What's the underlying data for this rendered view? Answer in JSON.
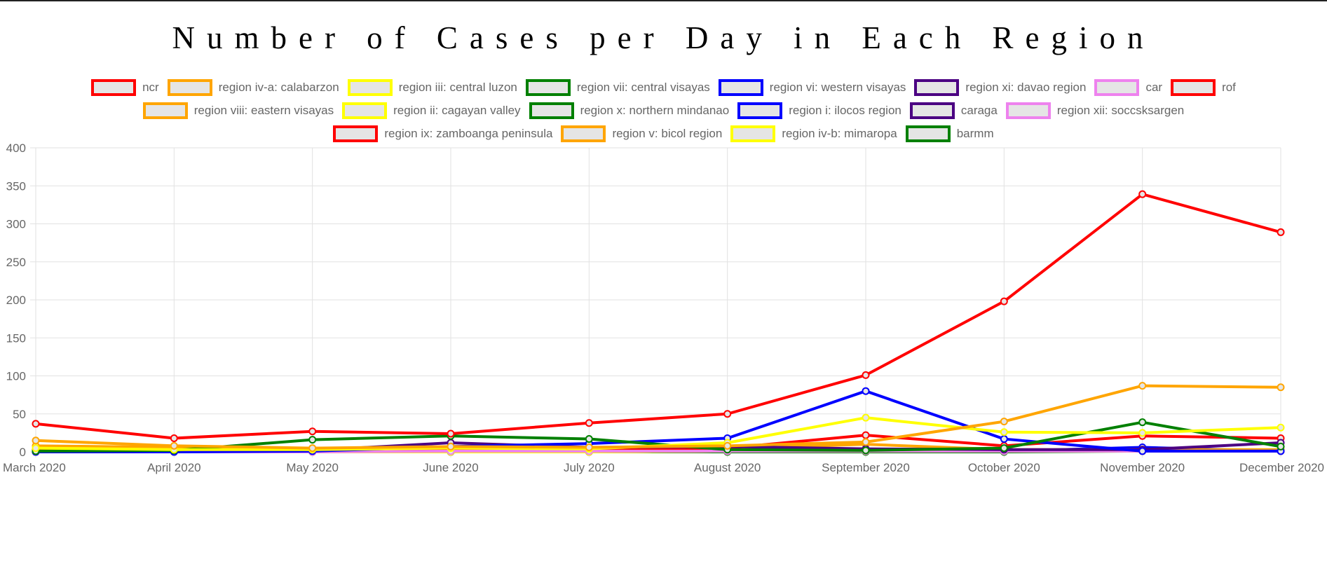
{
  "chart_data": {
    "type": "line",
    "title": "Number of Cases per Day in Each Region",
    "xlabel": "",
    "ylabel": "",
    "ylim": [
      0,
      400
    ],
    "yticks": [
      0,
      50,
      100,
      150,
      200,
      250,
      300,
      350,
      400
    ],
    "grid": true,
    "legend_position": "top",
    "categories": [
      "March 2020",
      "April 2020",
      "May 2020",
      "June 2020",
      "July 2020",
      "August 2020",
      "September 2020",
      "October 2020",
      "November 2020",
      "December 2020"
    ],
    "legend_rows": [
      [
        "ncr",
        "region iv-a: calabarzon",
        "region iii: central luzon",
        "region vii: central visayas",
        "region vi: western visayas",
        "region xi: davao region",
        "car",
        "rof"
      ],
      [
        "region viii: eastern visayas",
        "region ii: cagayan valley",
        "region x: northern mindanao",
        "region i: ilocos region",
        "caraga",
        "region xii: soccsksargen"
      ],
      [
        "region ix: zamboanga peninsula",
        "region v: bicol region",
        "region iv-b: mimaropa",
        "barmm"
      ]
    ],
    "series": [
      {
        "name": "ncr",
        "color": "#ff0000",
        "values": [
          37,
          18,
          27,
          24,
          38,
          50,
          101,
          198,
          339,
          289
        ]
      },
      {
        "name": "region iv-a: calabarzon",
        "color": "#ffa500",
        "values": [
          15,
          8,
          5,
          7,
          6,
          8,
          13,
          40,
          87,
          85
        ]
      },
      {
        "name": "region iii: central luzon",
        "color": "#ffff00",
        "values": [
          5,
          3,
          3,
          5,
          4,
          12,
          45,
          26,
          25,
          32
        ]
      },
      {
        "name": "region vii: central visayas",
        "color": "#008000",
        "values": [
          1,
          2,
          16,
          21,
          17,
          3,
          2,
          5,
          39,
          7
        ]
      },
      {
        "name": "region vi: western visayas",
        "color": "#0000ff",
        "values": [
          0,
          0,
          1,
          7,
          11,
          18,
          80,
          17,
          1,
          1
        ]
      },
      {
        "name": "region xi: davao region",
        "color": "#4b0082",
        "values": [
          1,
          1,
          2,
          12,
          6,
          7,
          4,
          3,
          3,
          12
        ]
      },
      {
        "name": "car",
        "color": "#ee82ee",
        "values": [
          0,
          0,
          0,
          1,
          1,
          1,
          1,
          1,
          1,
          1
        ]
      },
      {
        "name": "rof",
        "color": "#ff0000",
        "values": [
          3,
          2,
          3,
          3,
          2,
          5,
          22,
          8,
          21,
          18
        ]
      },
      {
        "name": "region viii: eastern visayas",
        "color": "#ffa500",
        "values": [
          8,
          6,
          4,
          4,
          3,
          4,
          10,
          3,
          3,
          3
        ]
      },
      {
        "name": "region ii: cagayan valley",
        "color": "#ffff00",
        "values": [
          0,
          0,
          0,
          0,
          0,
          1,
          1,
          1,
          1,
          1
        ]
      },
      {
        "name": "region x: northern mindanao",
        "color": "#008000",
        "values": [
          0,
          0,
          1,
          1,
          1,
          2,
          1,
          2,
          2,
          2
        ]
      },
      {
        "name": "region i: ilocos region",
        "color": "#0000ff",
        "values": [
          0,
          0,
          0,
          0,
          1,
          1,
          1,
          1,
          6,
          1
        ]
      },
      {
        "name": "caraga",
        "color": "#4b0082",
        "values": [
          0,
          0,
          0,
          0,
          0,
          1,
          1,
          1,
          1,
          1
        ]
      },
      {
        "name": "region xii: soccsksargen",
        "color": "#ee82ee",
        "values": [
          0,
          0,
          0,
          0,
          0,
          1,
          1,
          1,
          1,
          1
        ]
      },
      {
        "name": "region ix: zamboanga peninsula",
        "color": "#ff0000",
        "values": [
          0,
          0,
          0,
          0,
          1,
          1,
          1,
          1,
          1,
          1
        ]
      },
      {
        "name": "region v: bicol region",
        "color": "#ffa500",
        "values": [
          0,
          0,
          0,
          0,
          0,
          1,
          1,
          1,
          1,
          1
        ]
      },
      {
        "name": "region iv-b: mimaropa",
        "color": "#ffff00",
        "values": [
          0,
          0,
          0,
          0,
          0,
          1,
          1,
          1,
          1,
          1
        ]
      },
      {
        "name": "barmm",
        "color": "#008000",
        "values": [
          0,
          0,
          0,
          0,
          0,
          0,
          0,
          0,
          1,
          1
        ]
      }
    ]
  }
}
